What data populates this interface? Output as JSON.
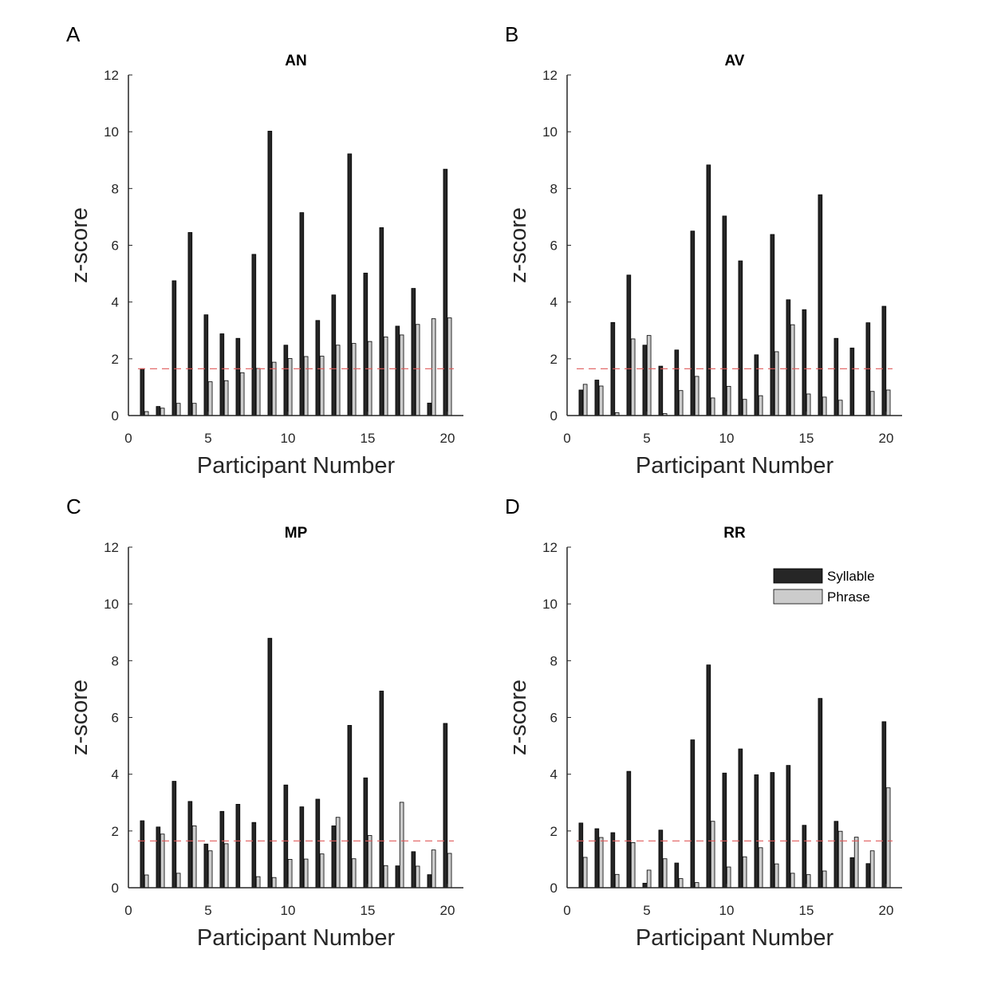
{
  "colors": {
    "syllable": "#262626",
    "phrase": "#cccccc",
    "bar_edge": "#000000",
    "threshold": "#e05a5a",
    "axis": "#262626"
  },
  "chart_data": [
    {
      "type": "bar",
      "panel_letter": "A",
      "title": "AN",
      "xlabel": "Participant Number",
      "ylabel": "z-score",
      "xlim": [
        0,
        21
      ],
      "ylim": [
        0,
        12
      ],
      "xticks": [
        0,
        5,
        10,
        15,
        20
      ],
      "yticks": [
        0,
        2,
        4,
        6,
        8,
        10,
        12
      ],
      "threshold": 1.65,
      "x": [
        1,
        2,
        3,
        4,
        5,
        6,
        7,
        8,
        9,
        10,
        11,
        12,
        13,
        14,
        15,
        16,
        17,
        18,
        19,
        20
      ],
      "series": [
        {
          "name": "Syllable",
          "values": [
            1.65,
            0.32,
            4.75,
            6.45,
            3.55,
            2.88,
            2.72,
            5.68,
            10.02,
            2.48,
            7.15,
            3.35,
            4.25,
            9.22,
            5.02,
            6.62,
            3.15,
            4.48,
            0.44,
            8.68
          ]
        },
        {
          "name": "Phrase",
          "values": [
            0.14,
            0.26,
            0.43,
            0.43,
            1.19,
            1.23,
            1.51,
            1.66,
            1.88,
            2.01,
            2.08,
            2.09,
            2.48,
            2.54,
            2.61,
            2.77,
            2.84,
            3.21,
            3.41,
            3.44
          ]
        }
      ]
    },
    {
      "type": "bar",
      "panel_letter": "B",
      "title": "AV",
      "xlabel": "Participant Number",
      "ylabel": "z-score",
      "xlim": [
        0,
        21
      ],
      "ylim": [
        0,
        12
      ],
      "xticks": [
        0,
        5,
        10,
        15,
        20
      ],
      "yticks": [
        0,
        2,
        4,
        6,
        8,
        10,
        12
      ],
      "threshold": 1.65,
      "x": [
        1,
        2,
        3,
        4,
        5,
        6,
        7,
        8,
        9,
        10,
        11,
        12,
        13,
        14,
        15,
        16,
        17,
        18,
        19,
        20
      ],
      "series": [
        {
          "name": "Syllable",
          "values": [
            0.9,
            1.25,
            3.28,
            4.95,
            2.48,
            1.74,
            2.31,
            6.5,
            8.83,
            7.03,
            5.45,
            2.14,
            6.38,
            4.08,
            3.73,
            7.78,
            2.72,
            2.38,
            3.27,
            3.85
          ]
        },
        {
          "name": "Phrase",
          "values": [
            1.1,
            1.04,
            0.1,
            2.7,
            2.82,
            0.07,
            0.88,
            1.38,
            0.62,
            1.03,
            0.57,
            0.7,
            2.25,
            3.2,
            0.76,
            0.65,
            0.54,
            0.0,
            0.85,
            0.9
          ]
        }
      ]
    },
    {
      "type": "bar",
      "panel_letter": "C",
      "title": "MP",
      "xlabel": "Participant Number",
      "ylabel": "z-score",
      "xlim": [
        0,
        21
      ],
      "ylim": [
        0,
        12
      ],
      "xticks": [
        0,
        5,
        10,
        15,
        20
      ],
      "yticks": [
        0,
        2,
        4,
        6,
        8,
        10,
        12
      ],
      "threshold": 1.65,
      "x": [
        1,
        2,
        3,
        4,
        5,
        6,
        7,
        8,
        9,
        10,
        11,
        12,
        13,
        14,
        15,
        16,
        17,
        18,
        19,
        20
      ],
      "series": [
        {
          "name": "Syllable",
          "values": [
            2.36,
            2.14,
            3.75,
            3.04,
            1.54,
            2.69,
            2.94,
            2.3,
            8.79,
            3.62,
            2.85,
            3.12,
            2.18,
            5.72,
            3.87,
            6.93,
            0.77,
            1.27,
            0.46,
            5.79
          ]
        },
        {
          "name": "Phrase",
          "values": [
            0.45,
            1.89,
            0.51,
            2.18,
            1.3,
            1.55,
            0.0,
            0.39,
            0.36,
            1.0,
            1.01,
            1.19,
            2.48,
            1.02,
            1.84,
            0.78,
            3.01,
            0.76,
            1.33,
            1.21
          ]
        }
      ]
    },
    {
      "type": "bar",
      "panel_letter": "D",
      "title": "RR",
      "xlabel": "Participant Number",
      "ylabel": "z-score",
      "xlim": [
        0,
        21
      ],
      "ylim": [
        0,
        12
      ],
      "xticks": [
        0,
        5,
        10,
        15,
        20
      ],
      "yticks": [
        0,
        2,
        4,
        6,
        8,
        10,
        12
      ],
      "threshold": 1.65,
      "legend": {
        "placement": "top-right",
        "entries": [
          "Syllable",
          "Phrase"
        ]
      },
      "x": [
        1,
        2,
        3,
        4,
        5,
        6,
        7,
        8,
        9,
        10,
        11,
        12,
        13,
        14,
        15,
        16,
        17,
        18,
        19,
        20
      ],
      "series": [
        {
          "name": "Syllable",
          "values": [
            2.28,
            2.08,
            1.94,
            4.1,
            0.16,
            2.03,
            0.87,
            5.21,
            7.85,
            4.04,
            4.89,
            3.98,
            4.06,
            4.31,
            2.2,
            6.67,
            2.34,
            1.06,
            0.85,
            5.85
          ]
        },
        {
          "name": "Phrase",
          "values": [
            1.07,
            1.77,
            0.47,
            1.59,
            0.62,
            1.02,
            0.32,
            0.18,
            2.34,
            0.73,
            1.09,
            1.41,
            0.84,
            0.51,
            0.46,
            0.59,
            1.99,
            1.78,
            1.3,
            3.52
          ]
        }
      ]
    }
  ]
}
